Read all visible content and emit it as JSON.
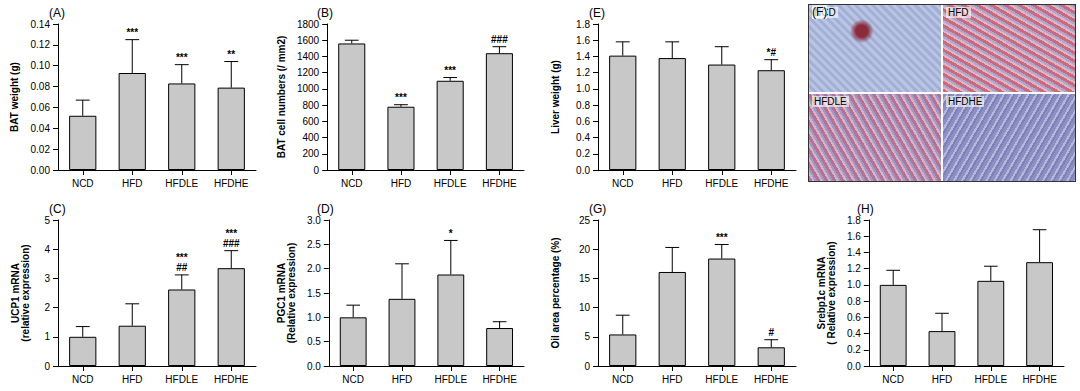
{
  "chart_data": [
    {
      "type": "bar",
      "panel": "(A)",
      "y_label": [
        "BAT weight (g)"
      ],
      "color": "#c8c8c8",
      "grid": false,
      "categories": [
        "NCD",
        "HFD",
        "HFDLE",
        "HFDHE"
      ],
      "values": [
        0.052,
        0.093,
        0.083,
        0.079
      ],
      "error": [
        0.015,
        0.032,
        0.018,
        0.025
      ],
      "annotations": [
        null,
        [
          "***"
        ],
        [
          "***"
        ],
        [
          "**"
        ]
      ],
      "ylim": [
        0,
        0.14
      ],
      "yticks": [
        {
          "value": 0,
          "label": "0.00"
        },
        {
          "value": 0.02,
          "label": "0.02"
        },
        {
          "value": 0.04,
          "label": "0.04"
        },
        {
          "value": 0.06,
          "label": "0.06"
        },
        {
          "value": 0.08,
          "label": "0.08"
        },
        {
          "value": 0.1,
          "label": "0.10"
        },
        {
          "value": 0.12,
          "label": "0.12"
        },
        {
          "value": 0.14,
          "label": "0.14"
        }
      ]
    },
    {
      "type": "bar",
      "panel": "(B)",
      "y_label": [
        "BAT cell numbers (/ mm2)"
      ],
      "color": "#c8c8c8",
      "grid": false,
      "categories": [
        "NCD",
        "HFD",
        "HFDLE",
        "HFDHE"
      ],
      "values": [
        1560,
        780,
        1100,
        1440
      ],
      "error": [
        40,
        25,
        40,
        80
      ],
      "annotations": [
        null,
        [
          "***"
        ],
        [
          "***"
        ],
        [
          "###"
        ]
      ],
      "ylim": [
        0,
        1800
      ],
      "yticks": [
        0,
        200,
        400,
        600,
        800,
        1000,
        1200,
        1400,
        1600,
        1800
      ]
    },
    {
      "type": "bar",
      "panel": "(E)",
      "y_label": [
        "Liver weight (g)"
      ],
      "color": "#c8c8c8",
      "grid": false,
      "categories": [
        "NCD",
        "HFD",
        "HFDLE",
        "HFDHE"
      ],
      "values": [
        1.41,
        1.38,
        1.3,
        1.23
      ],
      "error": [
        0.17,
        0.2,
        0.22,
        0.13
      ],
      "annotations": [
        null,
        null,
        null,
        [
          "*#"
        ]
      ],
      "ylim": [
        0,
        1.8
      ],
      "yticks": [
        {
          "value": 0,
          "label": "0.0"
        },
        {
          "value": 0.2,
          "label": "0.2"
        },
        {
          "value": 0.4,
          "label": "0.4"
        },
        {
          "value": 0.6,
          "label": "0.6"
        },
        {
          "value": 0.8,
          "label": "0.8"
        },
        {
          "value": 1,
          "label": "1.0"
        },
        {
          "value": 1.2,
          "label": "1.2"
        },
        {
          "value": 1.4,
          "label": "1.4"
        },
        {
          "value": 1.6,
          "label": "1.6"
        },
        {
          "value": 1.8,
          "label": "1.8"
        }
      ]
    },
    {
      "type": "bar",
      "panel": "(C)",
      "y_label": [
        "UCP1 mRNA",
        "(relative expression)"
      ],
      "color": "#c8c8c8",
      "grid": false,
      "categories": [
        "NCD",
        "HFD",
        "HFDLE",
        "HFDHE"
      ],
      "values": [
        1.0,
        1.38,
        2.62,
        3.35
      ],
      "error": [
        0.35,
        0.75,
        0.5,
        0.6
      ],
      "annotations": [
        null,
        null,
        [
          "***",
          "##"
        ],
        [
          "***",
          "###"
        ]
      ],
      "ylim": [
        0,
        5
      ],
      "yticks": [
        0,
        1,
        2,
        3,
        4,
        5
      ]
    },
    {
      "type": "bar",
      "panel": "(D)",
      "y_label": [
        "PGC1 mRNA",
        "(Relative expression)"
      ],
      "color": "#c8c8c8",
      "grid": false,
      "categories": [
        "NCD",
        "HFD",
        "HFDLE",
        "HFDHE"
      ],
      "values": [
        1.0,
        1.38,
        1.88,
        0.78
      ],
      "error": [
        0.25,
        0.72,
        0.7,
        0.13
      ],
      "annotations": [
        null,
        null,
        [
          "*"
        ],
        null
      ],
      "ylim": [
        0,
        3
      ],
      "yticks": [
        {
          "value": 0,
          "label": "0.0"
        },
        {
          "value": 0.5,
          "label": "0.5"
        },
        {
          "value": 1,
          "label": "1.0"
        },
        {
          "value": 1.5,
          "label": "1.5"
        },
        {
          "value": 2,
          "label": "2.0"
        },
        {
          "value": 2.5,
          "label": "2.5"
        },
        {
          "value": 3,
          "label": "3.0"
        }
      ]
    },
    {
      "type": "bar",
      "panel": "(G)",
      "y_label": [
        "Oil area percentage (%)"
      ],
      "color": "#c8c8c8",
      "grid": false,
      "categories": [
        "NCD",
        "HFD",
        "HFDLE",
        "HFDHE"
      ],
      "values": [
        5.4,
        16.1,
        18.4,
        3.2
      ],
      "error": [
        3.3,
        4.2,
        2.4,
        1.3
      ],
      "annotations": [
        null,
        null,
        [
          "***"
        ],
        [
          "#"
        ]
      ],
      "ylim": [
        0,
        25
      ],
      "yticks": [
        0,
        5,
        10,
        15,
        20,
        25
      ]
    },
    {
      "type": "bar",
      "panel": "(H)",
      "y_label": [
        "Srebp1c mRNA",
        "( Relative expression)"
      ],
      "color": "#c8c8c8",
      "grid": false,
      "categories": [
        "NCD",
        "HFD",
        "HFDLE",
        "HFDHE"
      ],
      "values": [
        1.0,
        0.43,
        1.05,
        1.28
      ],
      "error": [
        0.18,
        0.22,
        0.18,
        0.4
      ],
      "annotations": [
        null,
        null,
        null,
        null
      ],
      "ylim": [
        0,
        1.8
      ],
      "yticks": [
        {
          "value": 0,
          "label": "0.0"
        },
        {
          "value": 0.2,
          "label": "0.2"
        },
        {
          "value": 0.4,
          "label": "0.4"
        },
        {
          "value": 0.6,
          "label": "0.6"
        },
        {
          "value": 0.8,
          "label": "0.8"
        },
        {
          "value": 1,
          "label": "1.0"
        },
        {
          "value": 1.2,
          "label": "1.2"
        },
        {
          "value": 1.4,
          "label": "1.4"
        },
        {
          "value": 1.6,
          "label": "1.6"
        },
        {
          "value": 1.8,
          "label": "1.8"
        }
      ]
    }
  ],
  "image_panel": {
    "panel": "(F)",
    "quadrants": [
      "NCD",
      "HFD",
      "HFDLE",
      "HFDHE"
    ]
  }
}
